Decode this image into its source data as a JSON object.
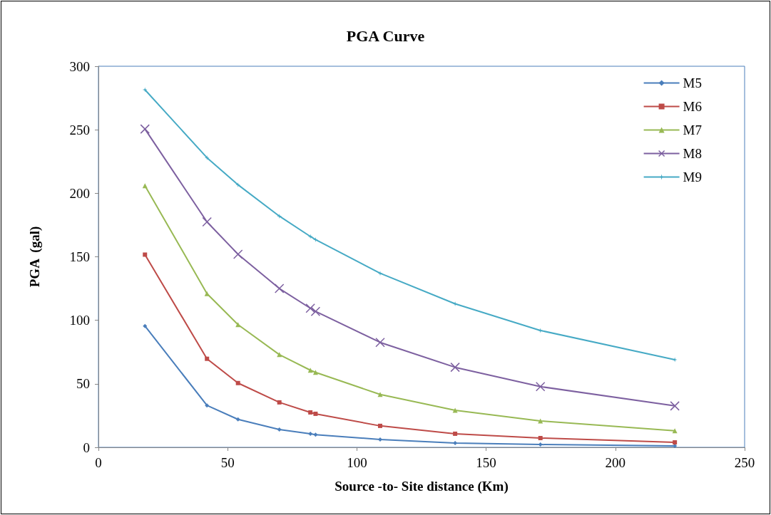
{
  "chart_data": {
    "type": "line",
    "title": "PGA Curve",
    "xlabel": "Source -to- Site distance (Km)",
    "ylabel": "PGA  (gal)",
    "x": [
      18,
      42,
      54,
      70,
      82,
      84,
      109,
      138,
      171,
      223
    ],
    "series": [
      {
        "name": "M5",
        "color": "#4a7ebb",
        "marker": "diamond",
        "values": [
          95.5,
          33,
          22,
          14,
          10.7,
          10,
          6.2,
          3.4,
          2.2,
          1.1
        ]
      },
      {
        "name": "M6",
        "color": "#be4b48",
        "marker": "square",
        "values": [
          151.7,
          69.7,
          50.6,
          35.4,
          27.5,
          26.4,
          16.9,
          10.7,
          7.3,
          3.9
        ]
      },
      {
        "name": "M7",
        "color": "#98b954",
        "marker": "triangle",
        "values": [
          206,
          121,
          96.6,
          73,
          60.7,
          59,
          41.6,
          29.2,
          20.8,
          13
        ]
      },
      {
        "name": "M8",
        "color": "#7d60a0",
        "marker": "cross",
        "values": [
          250.6,
          177.5,
          152,
          125,
          109.5,
          107,
          82.6,
          63,
          47.8,
          32.6
        ]
      },
      {
        "name": "M9",
        "color": "#46aac5",
        "marker": "star",
        "values": [
          281.5,
          228,
          206.7,
          182,
          166,
          163.5,
          137,
          113,
          92,
          69
        ]
      }
    ],
    "xlim": [
      0,
      250
    ],
    "xticks": [
      0,
      50,
      100,
      150,
      200,
      250
    ],
    "ylim": [
      0,
      300
    ],
    "yticks": [
      0,
      50,
      100,
      150,
      200,
      250,
      300
    ],
    "grid": false,
    "legend": "top right",
    "line_style": "solid"
  }
}
